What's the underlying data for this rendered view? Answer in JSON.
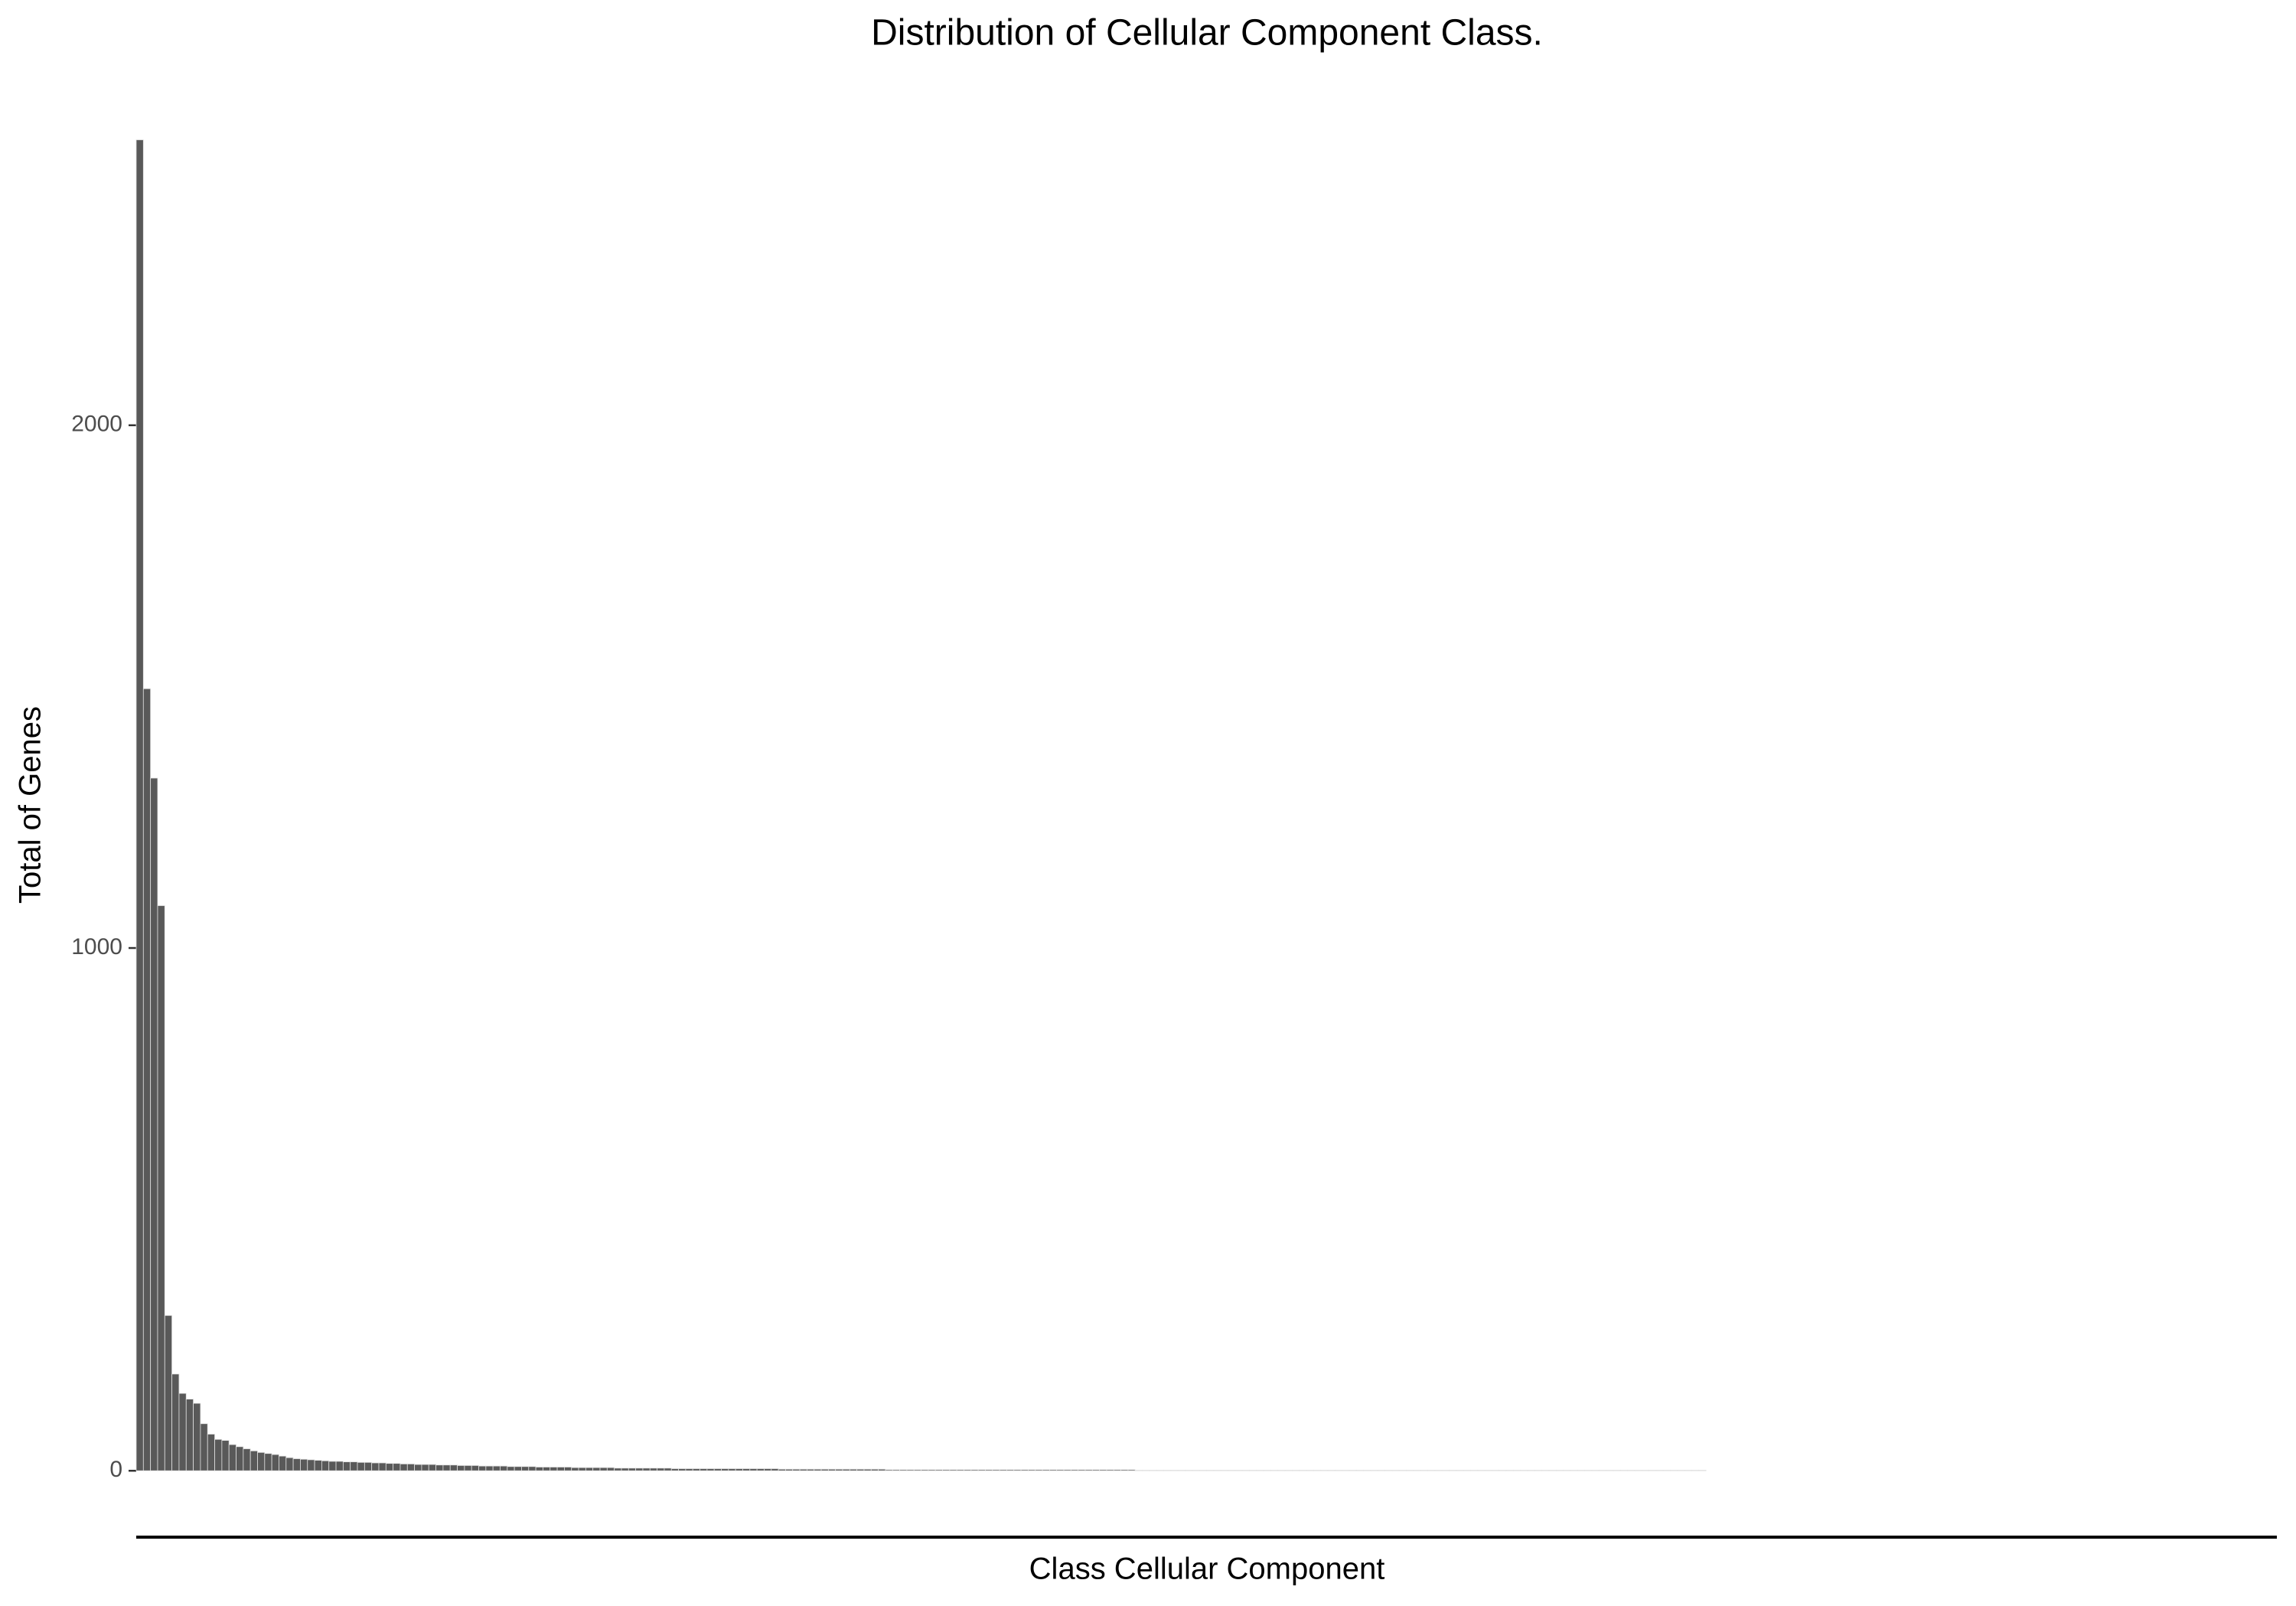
{
  "chart_data": {
    "type": "bar",
    "title": "Distribution of Cellular Component Class.",
    "x_label": "Class Cellular Component",
    "y_label": "Total of Genes",
    "color": "#595959",
    "ylim": [
      -127,
      2673
    ],
    "yticks": [
      0,
      1000,
      2000
    ],
    "grid": false,
    "categories": [
      null,
      null,
      null,
      null,
      null,
      null,
      null,
      null,
      null,
      null,
      null,
      null,
      null,
      null,
      null,
      null,
      null,
      null,
      null,
      null,
      null,
      null,
      null,
      null,
      null,
      null,
      null,
      null,
      null,
      null,
      null,
      null,
      null,
      null,
      null,
      null,
      null,
      null,
      null,
      null,
      null,
      null,
      null,
      null,
      null,
      null,
      null,
      null,
      null,
      null,
      null,
      null,
      null,
      null,
      null,
      null,
      null,
      null,
      null,
      null,
      null,
      null,
      null,
      null,
      null,
      null,
      null,
      null,
      null,
      null,
      null,
      null,
      null,
      null,
      null,
      null,
      null,
      null,
      null,
      null,
      null,
      null,
      null,
      null,
      null,
      null,
      null,
      null,
      null,
      null,
      null,
      null,
      null,
      null,
      null,
      null,
      null,
      null,
      null,
      null,
      null,
      null,
      null,
      null,
      null,
      null,
      null,
      null,
      null,
      null,
      null,
      null,
      null,
      null,
      null,
      null,
      null,
      null,
      null,
      null,
      null,
      null,
      null,
      null,
      null,
      null,
      null,
      null,
      null,
      null,
      null,
      null,
      null,
      null,
      null,
      null,
      null,
      null,
      null,
      null,
      null,
      null,
      null,
      null,
      null,
      null,
      null,
      null,
      null,
      null,
      null,
      null,
      null,
      null,
      null,
      null,
      null,
      null,
      null,
      null,
      null,
      null,
      null,
      null,
      null,
      null,
      null,
      null,
      null,
      null,
      null,
      null,
      null,
      null,
      null,
      null,
      null,
      null,
      null,
      null,
      null,
      null,
      null,
      null,
      null,
      null,
      null,
      null,
      null,
      null,
      null,
      null,
      null,
      null,
      null,
      null,
      null,
      null,
      null,
      null,
      null,
      null,
      null,
      null,
      null,
      null,
      null,
      null,
      null,
      null,
      null,
      null,
      null,
      null,
      null,
      null,
      null,
      null,
      null,
      null,
      null,
      null,
      null,
      null,
      null,
      null,
      null,
      null,
      null,
      null,
      null,
      null,
      null,
      null,
      null,
      null,
      null,
      null,
      null,
      null,
      null,
      null,
      null,
      null,
      null,
      null,
      null,
      null,
      null,
      null,
      null,
      null,
      null,
      null,
      null,
      null,
      null,
      null,
      null,
      null,
      null,
      null,
      null,
      null,
      null,
      null,
      null,
      null,
      null,
      null,
      null,
      null,
      null,
      null,
      null,
      null,
      null,
      null,
      null,
      null,
      null,
      null,
      null,
      null,
      null,
      null,
      null,
      null,
      null,
      null,
      null,
      null,
      null,
      null,
      null,
      null,
      null,
      null,
      null,
      null
    ],
    "values": [
      2546,
      1496,
      1325,
      1081,
      297,
      185,
      148,
      137,
      129,
      90,
      70,
      60,
      58,
      50,
      46,
      42,
      38,
      35,
      33,
      31,
      28,
      25,
      23,
      22,
      21,
      20,
      19,
      18,
      18,
      17,
      17,
      16,
      16,
      15,
      15,
      14,
      14,
      13,
      13,
      12,
      12,
      12,
      11,
      11,
      11,
      10,
      10,
      10,
      9,
      9,
      9,
      9,
      8,
      8,
      8,
      8,
      7,
      7,
      7,
      7,
      7,
      6,
      6,
      6,
      6,
      6,
      6,
      5,
      5,
      5,
      5,
      5,
      5,
      5,
      5,
      4,
      4,
      4,
      4,
      4,
      4,
      4,
      4,
      4,
      4,
      4,
      4,
      4,
      4,
      4,
      3,
      3,
      3,
      3,
      3,
      3,
      3,
      3,
      3,
      3,
      3,
      3,
      3,
      3,
      3,
      2,
      2,
      2,
      2,
      2,
      2,
      2,
      2,
      2,
      2,
      2,
      2,
      2,
      2,
      2,
      2,
      2,
      2,
      2,
      2,
      2,
      2,
      2,
      2,
      2,
      2,
      2,
      2,
      2,
      2,
      2,
      2,
      2,
      2,
      2,
      1,
      1,
      1,
      1,
      1,
      1,
      1,
      1,
      1,
      1,
      1,
      1,
      1,
      1,
      1,
      1,
      1,
      1,
      1,
      1,
      1,
      1,
      1,
      1,
      1,
      1,
      1,
      1,
      1,
      1,
      1,
      1,
      1,
      1,
      1,
      1,
      1,
      1,
      1,
      1,
      1,
      1,
      1,
      1,
      1,
      1,
      1,
      1,
      1,
      1,
      1,
      1,
      1,
      1,
      1,
      1,
      1,
      1,
      1,
      1,
      1,
      1,
      1,
      1,
      1,
      1,
      1,
      1,
      1,
      1,
      1,
      1,
      1,
      1,
      1,
      1,
      1,
      1,
      1,
      1,
      0,
      0,
      0,
      0,
      0,
      0,
      0,
      0,
      0,
      0,
      0,
      0,
      0,
      0,
      0,
      0,
      0,
      0,
      0,
      0,
      0,
      0,
      0,
      0,
      0,
      0,
      0,
      0,
      0,
      0,
      0,
      0,
      0,
      0,
      0,
      0,
      0,
      0,
      0,
      0,
      0,
      0,
      0,
      0,
      0,
      0,
      0,
      0,
      0,
      0,
      0,
      0,
      0,
      0,
      0,
      0,
      0,
      0,
      0,
      0,
      0,
      0,
      0,
      0,
      0,
      0,
      0,
      0,
      0,
      0,
      0,
      0,
      0,
      0,
      0,
      0,
      0,
      0,
      0,
      0
    ]
  }
}
